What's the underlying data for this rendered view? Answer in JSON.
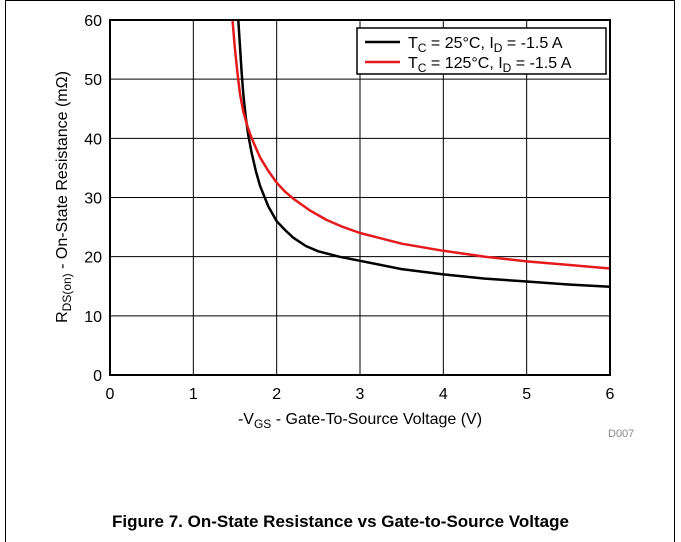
{
  "figure": {
    "caption": "Figure 7. On-State Resistance vs Gate-to-Source Voltage",
    "code": "D007"
  },
  "chart_data": {
    "type": "line",
    "title": "",
    "xlabel": {
      "prefix": "-V",
      "sub": "GS",
      "rest": " - Gate-To-Source Voltage (V)"
    },
    "ylabel": {
      "prefix": "R",
      "sub": "DS(on)",
      "rest": " - On-State Resistance (mΩ)"
    },
    "xlim": [
      0,
      6
    ],
    "ylim": [
      0,
      60
    ],
    "xticks": [
      "0",
      "1",
      "2",
      "3",
      "4",
      "5",
      "6"
    ],
    "yticks": [
      "0",
      "10",
      "20",
      "30",
      "40",
      "50",
      "60"
    ],
    "grid": true,
    "legend_position": "top-right",
    "series": [
      {
        "name": "T_C = 25°C, I_D = -1.5 A",
        "legend": {
          "t": "T",
          "tsub": "C",
          "mid": " = 25°C, I",
          "dsub": "D",
          "end": " = -1.5 A"
        },
        "color": "#000000",
        "x": [
          1.54,
          1.56,
          1.58,
          1.6,
          1.63,
          1.66,
          1.7,
          1.75,
          1.8,
          1.9,
          2.0,
          2.1,
          2.2,
          2.35,
          2.5,
          2.75,
          3.0,
          3.5,
          4.0,
          4.5,
          5.0,
          5.5,
          6.0
        ],
        "y": [
          60,
          55.5,
          51,
          47.5,
          43.5,
          40.5,
          37.5,
          34.5,
          32,
          28.5,
          26,
          24.5,
          23.2,
          21.8,
          20.9,
          20.0,
          19.3,
          17.9,
          17.0,
          16.3,
          15.8,
          15.3,
          14.9
        ]
      },
      {
        "name": "T_C = 125°C, I_D = -1.5 A",
        "legend": {
          "t": "T",
          "tsub": "C",
          "mid": " = 125°C, I",
          "dsub": "D",
          "end": " = -1.5 A"
        },
        "color": "#e41a1c",
        "x": [
          1.47,
          1.5,
          1.53,
          1.56,
          1.6,
          1.65,
          1.7,
          1.8,
          1.9,
          2.0,
          2.1,
          2.2,
          2.4,
          2.6,
          2.8,
          3.0,
          3.5,
          4.0,
          4.5,
          5.0,
          5.5,
          6.0
        ],
        "y": [
          60,
          55,
          51,
          47.5,
          44.5,
          42,
          40,
          36.8,
          34.5,
          32.5,
          31,
          29.8,
          27.8,
          26.2,
          25.0,
          24.0,
          22.2,
          21.0,
          20.0,
          19.2,
          18.6,
          18.0
        ]
      }
    ]
  }
}
